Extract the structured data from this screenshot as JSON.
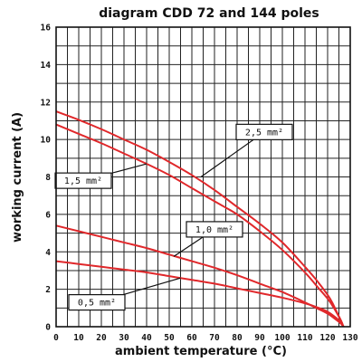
{
  "chart_data": {
    "type": "line",
    "title": "diagram CDD 72 and 144 poles",
    "xlabel": "ambient temperature (°C)",
    "ylabel": "working current (A)",
    "xlim": [
      0,
      130
    ],
    "ylim": [
      0,
      16
    ],
    "xticks": [
      "0",
      "10",
      "20",
      "30",
      "40",
      "50",
      "60",
      "70",
      "80",
      "90",
      "100",
      "110",
      "120",
      "130"
    ],
    "yticks": [
      "0",
      "2",
      "4",
      "6",
      "8",
      "10",
      "12",
      "14",
      "16"
    ],
    "grid": true,
    "series": [
      {
        "name": "2,5 mm²",
        "x": [
          0,
          10,
          20,
          30,
          40,
          50,
          60,
          70,
          80,
          90,
          100,
          110,
          115,
          120,
          122,
          124,
          126,
          127
        ],
        "y": [
          11.5,
          11.05,
          10.55,
          10.0,
          9.45,
          8.8,
          8.1,
          7.3,
          6.4,
          5.5,
          4.5,
          3.2,
          2.5,
          1.7,
          1.3,
          0.8,
          0.3,
          0
        ]
      },
      {
        "name": "1,5 mm²",
        "x": [
          0,
          10,
          20,
          30,
          40,
          50,
          60,
          70,
          80,
          90,
          100,
          110,
          115,
          120,
          122,
          124,
          126,
          127
        ],
        "y": [
          10.8,
          10.3,
          9.8,
          9.25,
          8.7,
          8.1,
          7.4,
          6.7,
          6.0,
          5.1,
          4.1,
          2.9,
          2.2,
          1.5,
          1.15,
          0.75,
          0.3,
          0
        ]
      },
      {
        "name": "1,0 mm²",
        "x": [
          0,
          10,
          20,
          30,
          40,
          50,
          60,
          70,
          80,
          90,
          100,
          110,
          115,
          120,
          124,
          126,
          127
        ],
        "y": [
          5.4,
          5.1,
          4.8,
          4.5,
          4.2,
          3.85,
          3.5,
          3.15,
          2.75,
          2.3,
          1.85,
          1.3,
          1.0,
          0.7,
          0.35,
          0.15,
          0
        ]
      },
      {
        "name": "0,5 mm²",
        "x": [
          0,
          10,
          20,
          30,
          40,
          50,
          60,
          70,
          80,
          90,
          100,
          110,
          115,
          120,
          124,
          126,
          127
        ],
        "y": [
          3.5,
          3.35,
          3.2,
          3.05,
          2.9,
          2.7,
          2.5,
          2.3,
          2.05,
          1.8,
          1.55,
          1.25,
          1.05,
          0.8,
          0.45,
          0.2,
          0
        ]
      }
    ],
    "annotations": [
      {
        "text": "2,5 mm²",
        "series": "2,5 mm²",
        "box_at": [
          92,
          10.4
        ],
        "point_at": [
          64,
          8.0
        ]
      },
      {
        "text": "1,5 mm²",
        "series": "1,5 mm²",
        "box_at": [
          12,
          7.8
        ],
        "point_at": [
          40,
          8.7
        ]
      },
      {
        "text": "1,0 mm²",
        "series": "1,0 mm²",
        "box_at": [
          70,
          5.2
        ],
        "point_at": [
          52,
          3.75
        ]
      },
      {
        "text": "0,5 mm²",
        "series": "0,5 mm²",
        "box_at": [
          18,
          1.3
        ],
        "point_at": [
          55,
          2.6
        ]
      }
    ]
  }
}
